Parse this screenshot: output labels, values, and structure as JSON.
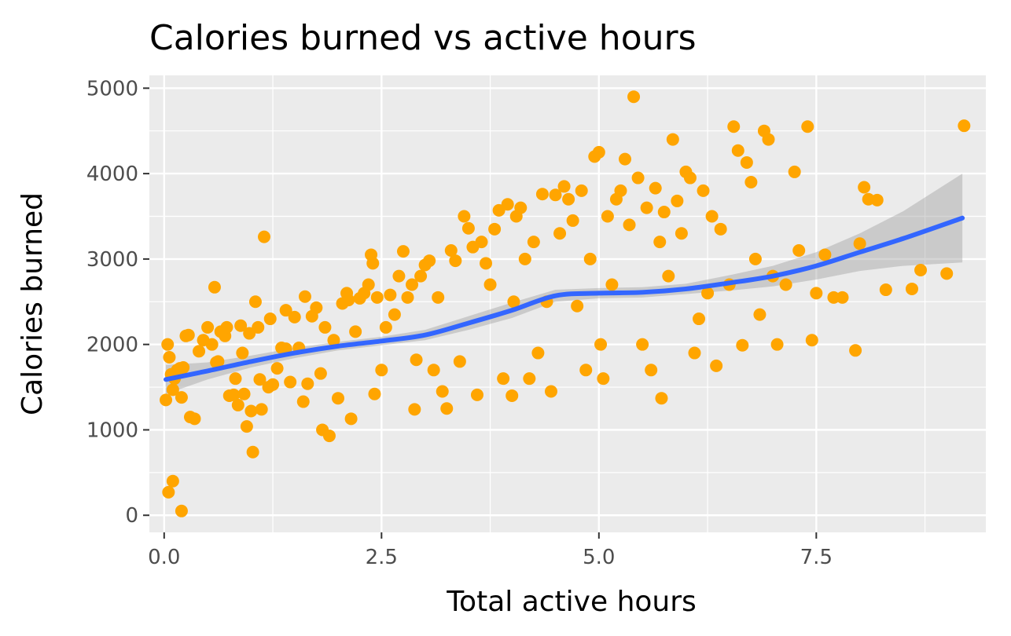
{
  "chart_data": {
    "type": "scatter",
    "title": "Calories burned vs active hours",
    "xlabel": "Total active hours",
    "ylabel": "Calories burned",
    "xlim": [
      -0.17,
      9.45
    ],
    "ylim": [
      -200,
      5150
    ],
    "x_ticks": [
      0,
      2.5,
      5,
      7.5
    ],
    "x_tick_labels": [
      "0.0",
      "2.5",
      "5.0",
      "7.5"
    ],
    "y_ticks": [
      0,
      1000,
      2000,
      3000,
      4000,
      5000
    ],
    "y_tick_labels": [
      "0",
      "1000",
      "2000",
      "3000",
      "4000",
      "5000"
    ],
    "grid": true,
    "colors": {
      "points": "#FFA500",
      "smooth_line": "#3366FF",
      "ribbon": "#999999",
      "panel": "#EBEBEB",
      "grid": "#FFFFFF"
    },
    "points": [
      [
        0.02,
        1350
      ],
      [
        0.04,
        2000
      ],
      [
        0.06,
        1850
      ],
      [
        0.08,
        1650
      ],
      [
        0.1,
        1470
      ],
      [
        0.12,
        1600
      ],
      [
        0.15,
        1700
      ],
      [
        0.18,
        1720
      ],
      [
        0.2,
        1380
      ],
      [
        0.22,
        1730
      ],
      [
        0.25,
        2100
      ],
      [
        0.28,
        2110
      ],
      [
        0.3,
        1150
      ],
      [
        0.35,
        1130
      ],
      [
        0.4,
        1920
      ],
      [
        0.45,
        2050
      ],
      [
        0.5,
        2200
      ],
      [
        0.55,
        2000
      ],
      [
        0.58,
        2670
      ],
      [
        0.6,
        1790
      ],
      [
        0.62,
        1800
      ],
      [
        0.65,
        2150
      ],
      [
        0.7,
        2100
      ],
      [
        0.72,
        2200
      ],
      [
        0.75,
        1400
      ],
      [
        0.8,
        1410
      ],
      [
        0.82,
        1600
      ],
      [
        0.85,
        1290
      ],
      [
        0.88,
        2220
      ],
      [
        0.9,
        1900
      ],
      [
        0.92,
        1420
      ],
      [
        0.95,
        1040
      ],
      [
        0.98,
        2130
      ],
      [
        1.0,
        1220
      ],
      [
        1.02,
        740
      ],
      [
        1.05,
        2500
      ],
      [
        1.08,
        2200
      ],
      [
        1.1,
        1590
      ],
      [
        1.12,
        1240
      ],
      [
        1.15,
        3260
      ],
      [
        1.2,
        1500
      ],
      [
        1.22,
        2300
      ],
      [
        1.25,
        1530
      ],
      [
        1.3,
        1720
      ],
      [
        1.35,
        1960
      ],
      [
        1.4,
        2400
      ],
      [
        1.45,
        1560
      ],
      [
        1.5,
        2320
      ],
      [
        1.55,
        1960
      ],
      [
        1.6,
        1330
      ],
      [
        1.62,
        2560
      ],
      [
        1.65,
        1540
      ],
      [
        1.7,
        2330
      ],
      [
        1.75,
        2430
      ],
      [
        1.8,
        1660
      ],
      [
        1.82,
        1000
      ],
      [
        1.85,
        2200
      ],
      [
        1.9,
        930
      ],
      [
        1.95,
        2050
      ],
      [
        2.0,
        1370
      ],
      [
        2.05,
        2480
      ],
      [
        2.1,
        2600
      ],
      [
        2.12,
        2520
      ],
      [
        2.15,
        1130
      ],
      [
        2.2,
        2150
      ],
      [
        2.25,
        2540
      ],
      [
        2.3,
        2600
      ],
      [
        2.35,
        2700
      ],
      [
        2.38,
        3050
      ],
      [
        2.4,
        2950
      ],
      [
        2.42,
        1420
      ],
      [
        2.45,
        2550
      ],
      [
        2.5,
        1700
      ],
      [
        2.55,
        2200
      ],
      [
        2.6,
        2580
      ],
      [
        2.65,
        2350
      ],
      [
        2.7,
        2800
      ],
      [
        2.75,
        3090
      ],
      [
        2.8,
        2550
      ],
      [
        2.85,
        2700
      ],
      [
        2.88,
        1240
      ],
      [
        2.9,
        1820
      ],
      [
        2.95,
        2800
      ],
      [
        3.0,
        2930
      ],
      [
        3.05,
        2980
      ],
      [
        3.1,
        1700
      ],
      [
        3.15,
        2550
      ],
      [
        3.2,
        1450
      ],
      [
        3.25,
        1250
      ],
      [
        3.3,
        3100
      ],
      [
        3.35,
        2980
      ],
      [
        3.4,
        1800
      ],
      [
        3.45,
        3500
      ],
      [
        3.5,
        3360
      ],
      [
        3.55,
        3140
      ],
      [
        3.6,
        1410
      ],
      [
        3.65,
        3200
      ],
      [
        3.7,
        2950
      ],
      [
        3.75,
        2700
      ],
      [
        3.8,
        3350
      ],
      [
        3.85,
        3570
      ],
      [
        3.9,
        1600
      ],
      [
        3.95,
        3640
      ],
      [
        4.0,
        1400
      ],
      [
        4.02,
        2500
      ],
      [
        4.05,
        3500
      ],
      [
        4.1,
        3600
      ],
      [
        4.15,
        3000
      ],
      [
        4.2,
        1600
      ],
      [
        4.25,
        3200
      ],
      [
        4.3,
        1900
      ],
      [
        4.35,
        3760
      ],
      [
        4.4,
        2500
      ],
      [
        4.45,
        1450
      ],
      [
        4.5,
        3750
      ],
      [
        4.55,
        3300
      ],
      [
        4.6,
        3850
      ],
      [
        4.65,
        3700
      ],
      [
        4.7,
        3450
      ],
      [
        4.75,
        2450
      ],
      [
        4.8,
        3800
      ],
      [
        4.85,
        1700
      ],
      [
        4.9,
        3000
      ],
      [
        4.95,
        4200
      ],
      [
        5.0,
        4250
      ],
      [
        5.02,
        2000
      ],
      [
        5.05,
        1600
      ],
      [
        5.1,
        3500
      ],
      [
        5.15,
        2700
      ],
      [
        5.2,
        3700
      ],
      [
        5.25,
        3800
      ],
      [
        5.3,
        4170
      ],
      [
        5.35,
        3400
      ],
      [
        5.4,
        4900
      ],
      [
        5.45,
        3950
      ],
      [
        5.5,
        2000
      ],
      [
        5.55,
        3600
      ],
      [
        5.6,
        1700
      ],
      [
        5.65,
        3830
      ],
      [
        5.7,
        3200
      ],
      [
        5.72,
        1370
      ],
      [
        5.75,
        3550
      ],
      [
        5.8,
        2800
      ],
      [
        5.85,
        4400
      ],
      [
        5.9,
        3680
      ],
      [
        5.95,
        3300
      ],
      [
        6.0,
        4020
      ],
      [
        6.05,
        3950
      ],
      [
        6.1,
        1900
      ],
      [
        6.15,
        2300
      ],
      [
        6.2,
        3800
      ],
      [
        6.25,
        2600
      ],
      [
        6.3,
        3500
      ],
      [
        6.35,
        1750
      ],
      [
        6.4,
        3350
      ],
      [
        6.5,
        2700
      ],
      [
        6.55,
        4550
      ],
      [
        6.6,
        4270
      ],
      [
        6.65,
        1990
      ],
      [
        6.7,
        4130
      ],
      [
        6.75,
        3900
      ],
      [
        6.8,
        3000
      ],
      [
        6.85,
        2350
      ],
      [
        6.9,
        4500
      ],
      [
        6.95,
        4400
      ],
      [
        7.0,
        2800
      ],
      [
        7.05,
        2000
      ],
      [
        7.15,
        2700
      ],
      [
        7.25,
        4020
      ],
      [
        7.3,
        3100
      ],
      [
        7.4,
        4550
      ],
      [
        7.45,
        2050
      ],
      [
        7.5,
        2600
      ],
      [
        7.6,
        3050
      ],
      [
        7.7,
        2550
      ],
      [
        7.8,
        2550
      ],
      [
        7.95,
        1930
      ],
      [
        8.0,
        3180
      ],
      [
        8.05,
        3840
      ],
      [
        8.1,
        3700
      ],
      [
        8.2,
        3690
      ],
      [
        8.3,
        2640
      ],
      [
        8.6,
        2650
      ],
      [
        8.7,
        2870
      ],
      [
        9.0,
        2830
      ],
      [
        9.2,
        4560
      ],
      [
        0.2,
        50
      ],
      [
        0.05,
        270
      ],
      [
        0.1,
        400
      ],
      [
        1.4,
        1950
      ]
    ],
    "smooth_fit": {
      "x": [
        0.02,
        0.5,
        1.0,
        1.5,
        2.0,
        2.5,
        3.0,
        3.5,
        4.0,
        4.5,
        5.0,
        5.5,
        6.0,
        6.5,
        7.0,
        7.5,
        8.0,
        8.5,
        9.18
      ],
      "y": [
        1590,
        1690,
        1800,
        1900,
        1980,
        2040,
        2110,
        2250,
        2400,
        2570,
        2600,
        2610,
        2650,
        2720,
        2800,
        2920,
        3080,
        3240,
        3480
      ],
      "lower": [
        1420,
        1590,
        1730,
        1840,
        1930,
        1990,
        2050,
        2170,
        2310,
        2500,
        2540,
        2550,
        2590,
        2630,
        2680,
        2760,
        2860,
        2920,
        2960
      ],
      "upper": [
        1760,
        1790,
        1870,
        1960,
        2030,
        2090,
        2170,
        2330,
        2490,
        2640,
        2660,
        2670,
        2710,
        2810,
        2920,
        3080,
        3300,
        3560,
        4000
      ]
    }
  }
}
